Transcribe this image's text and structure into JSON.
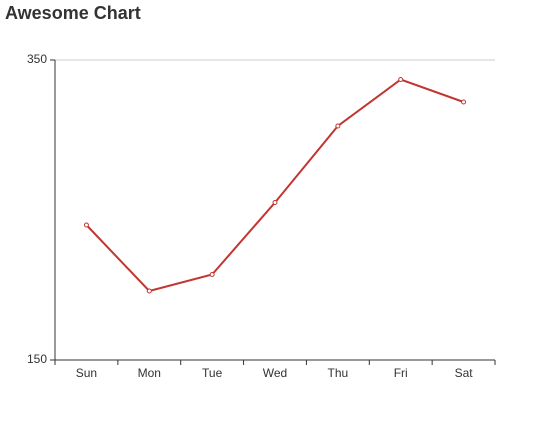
{
  "chart_data": {
    "type": "line",
    "title": "Awesome Chart",
    "categories": [
      "Sun",
      "Mon",
      "Tue",
      "Wed",
      "Thu",
      "Fri",
      "Sat"
    ],
    "series": [
      {
        "color": "#c23531",
        "values": [
          240,
          196,
          207,
          255,
          306,
          337,
          322
        ]
      }
    ],
    "ylim": [
      150,
      350
    ],
    "yticks": [
      150,
      350
    ],
    "grid": true
  }
}
